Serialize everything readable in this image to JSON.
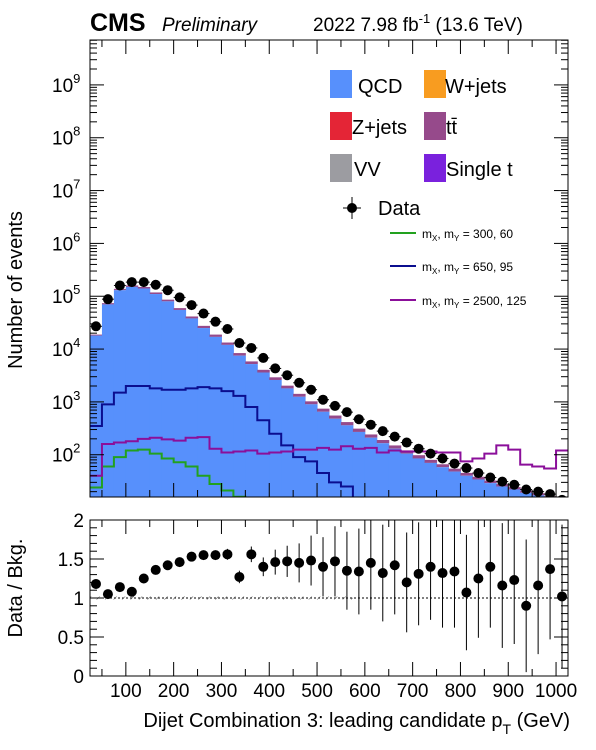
{
  "header": {
    "experiment": "CMS",
    "status": "Preliminary",
    "lumi": "2022 7.98 fb",
    "lumi_exp": "-1",
    "energy": " (13.6 TeV)"
  },
  "colors": {
    "qcd": "#5790fc",
    "wjets": "#f89c20",
    "zjets": "#e42536",
    "ttbar": "#964a8b",
    "vv": "#9c9ca1",
    "singlet": "#7a21dd",
    "sig1": "#22a11f",
    "sig2": "#0b0e8f",
    "sig3": "#8b0f9a"
  },
  "legend": {
    "qcd": "QCD",
    "wjets": "W+jets",
    "zjets": "Z+jets",
    "ttbar": "tt̄",
    "vv": "VV",
    "singlet": "Single t",
    "data": "Data",
    "sig_prefix_m": "m",
    "sig_x": "X",
    "sig_y": "Y",
    "sig1_vals": " = 300, 60",
    "sig2_vals": " = 650, 95",
    "sig3_vals": " = 2500, 125"
  },
  "axes": {
    "ylabel_main": "Number of events",
    "ylabel_ratio": "Data / Bkg.",
    "xlabel": "Dijet Combination 3: leading candidate p",
    "xlabel_sub": "T",
    "xlabel_unit": " (GeV)",
    "x_ticks": [
      "100",
      "200",
      "300",
      "400",
      "500",
      "600",
      "700",
      "800",
      "900",
      "1000"
    ],
    "y_ticks_main": [
      {
        "base": "10",
        "exp": "2"
      },
      {
        "base": "10",
        "exp": "3"
      },
      {
        "base": "10",
        "exp": "4"
      },
      {
        "base": "10",
        "exp": "5"
      },
      {
        "base": "10",
        "exp": "6"
      },
      {
        "base": "10",
        "exp": "7"
      },
      {
        "base": "10",
        "exp": "8"
      },
      {
        "base": "10",
        "exp": "9"
      }
    ],
    "y_ticks_ratio": [
      "0",
      "0.5",
      "1",
      "1.5",
      "2"
    ]
  },
  "chart_data": {
    "type": "bar",
    "x_range": [
      25,
      1025
    ],
    "y_log": true,
    "y_range_log10": [
      1.2,
      9.85
    ],
    "ratio_range": [
      0,
      2
    ],
    "bin_width": 25,
    "bin_low_edges": [
      25,
      50,
      75,
      100,
      125,
      150,
      175,
      200,
      225,
      250,
      275,
      300,
      325,
      350,
      375,
      400,
      425,
      450,
      475,
      500,
      525,
      550,
      575,
      600,
      625,
      650,
      675,
      700,
      725,
      750,
      775,
      800,
      825,
      850,
      875,
      900,
      925,
      950,
      975,
      1000
    ],
    "qcd": [
      18000,
      70000,
      130000,
      150000,
      140000,
      110000,
      80000,
      55000,
      38000,
      25000,
      17000,
      12000,
      7500,
      5200,
      3600,
      2600,
      1800,
      1250,
      900,
      650,
      480,
      360,
      270,
      210,
      165,
      130,
      105,
      85,
      70,
      58,
      48,
      40,
      34,
      29,
      25,
      22,
      19,
      17,
      15,
      14
    ],
    "ttbar": [
      800,
      4000,
      8000,
      10000,
      9500,
      8000,
      6200,
      4600,
      3400,
      2500,
      1800,
      1300,
      900,
      640,
      450,
      320,
      230,
      170,
      125,
      95,
      72,
      55,
      42,
      32,
      25,
      20,
      16,
      13,
      10,
      8,
      6.5,
      5.3,
      4.3,
      3.5,
      2.9,
      2.4,
      2.0,
      1.7,
      1.4,
      1.2
    ],
    "data": [
      27000,
      88000,
      160000,
      185000,
      185000,
      165000,
      130000,
      95000,
      68000,
      47000,
      33000,
      24000,
      13000,
      10500,
      6800,
      4300,
      3200,
      2300,
      1700,
      1100,
      840,
      640,
      470,
      370,
      280,
      220,
      170,
      130,
      105,
      85,
      68,
      56,
      45,
      37,
      31,
      27,
      22,
      20,
      18,
      14
    ],
    "signal_1": {
      "values": [
        24,
        60,
        90,
        120,
        125,
        105,
        85,
        72,
        60,
        40,
        28,
        21,
        16,
        9,
        5,
        3,
        2,
        0,
        0,
        0,
        0,
        0,
        0,
        0,
        0,
        0,
        0,
        0,
        0,
        0,
        0,
        0,
        0,
        0,
        0,
        0,
        0,
        0,
        0,
        0
      ]
    },
    "signal_2": {
      "values": [
        350,
        900,
        1500,
        2000,
        2000,
        1800,
        1700,
        1700,
        1800,
        1900,
        1800,
        1600,
        1300,
        800,
        450,
        250,
        150,
        90,
        75,
        45,
        30,
        25,
        15,
        8,
        3,
        0,
        0,
        0,
        0,
        0,
        0,
        0,
        0,
        0,
        0,
        0,
        0,
        0,
        0,
        0
      ]
    },
    "signal_3": {
      "values": [
        40,
        160,
        170,
        180,
        200,
        210,
        195,
        185,
        210,
        215,
        130,
        110,
        115,
        120,
        105,
        110,
        115,
        125,
        125,
        135,
        125,
        145,
        130,
        135,
        110,
        120,
        115,
        115,
        115,
        110,
        110,
        75,
        85,
        105,
        150,
        125,
        65,
        60,
        55,
        120
      ]
    },
    "ratio": [
      1.18,
      1.05,
      1.14,
      1.08,
      1.25,
      1.36,
      1.42,
      1.46,
      1.53,
      1.55,
      1.55,
      1.56,
      1.27,
      1.56,
      1.4,
      1.46,
      1.47,
      1.45,
      1.48,
      1.4,
      1.47,
      1.35,
      1.34,
      1.45,
      1.32,
      1.42,
      1.2,
      1.31,
      1.4,
      1.32,
      1.34,
      1.07,
      1.25,
      1.4,
      1.16,
      1.23,
      0.9,
      1.16,
      1.37,
      1.02
    ],
    "ratio_err": [
      0.03,
      0.02,
      0.02,
      0.02,
      0.02,
      0.03,
      0.03,
      0.04,
      0.05,
      0.05,
      0.06,
      0.07,
      0.08,
      0.1,
      0.12,
      0.16,
      0.2,
      0.25,
      0.32,
      0.38,
      0.45,
      0.5,
      0.55,
      0.6,
      0.62,
      0.63,
      0.64,
      0.66,
      0.68,
      0.7,
      0.72,
      0.74,
      0.76,
      0.78,
      0.8,
      0.82,
      0.85,
      0.88,
      0.9,
      0.92
    ]
  }
}
